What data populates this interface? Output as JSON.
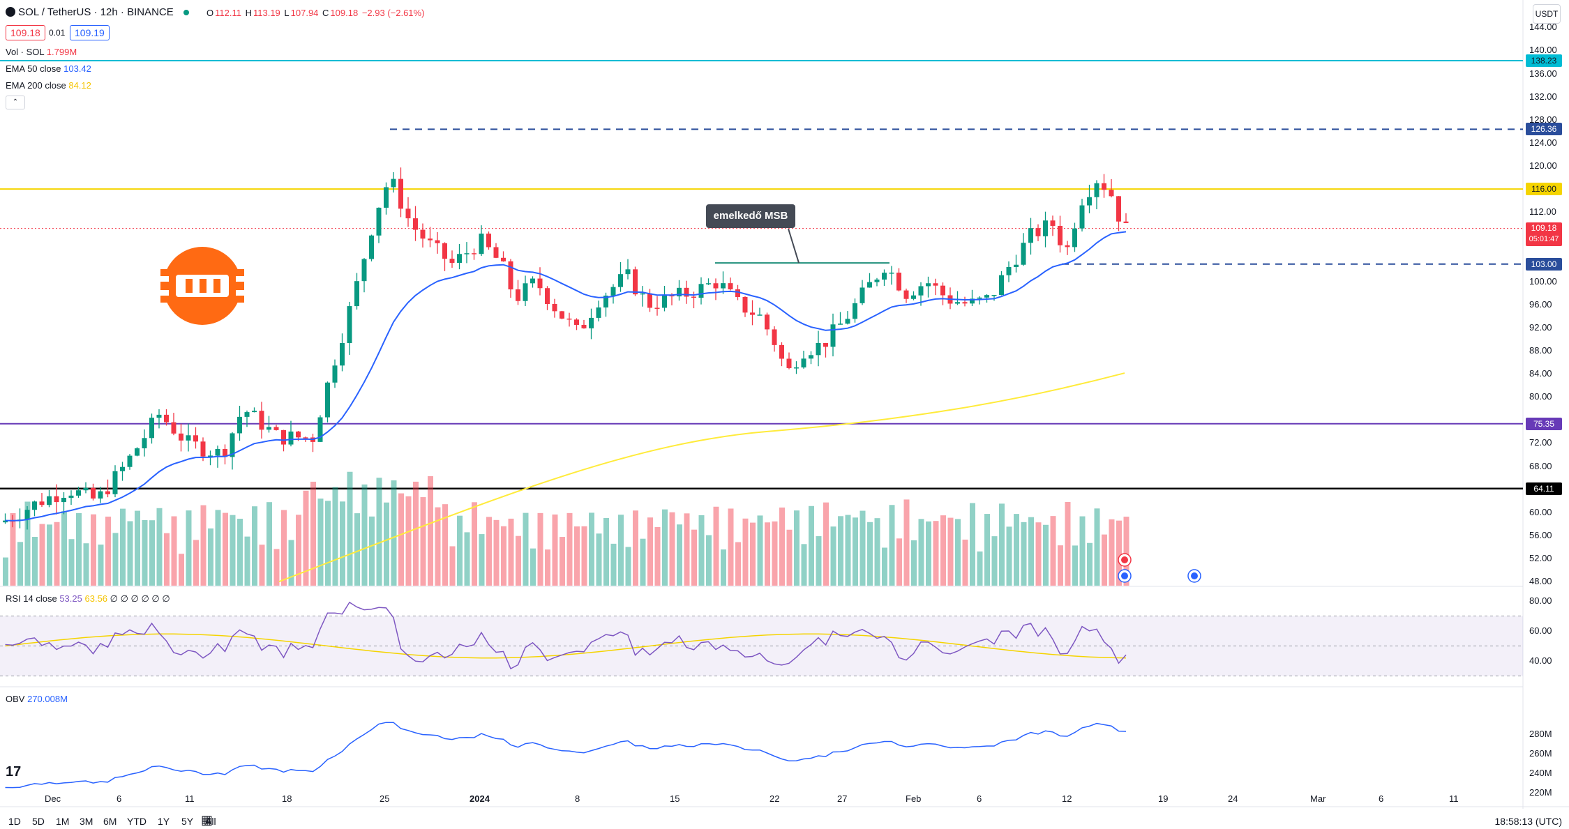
{
  "header": {
    "symbol": "SOL / TetherUS · 12h · BINANCE",
    "open_label": "O",
    "open": "112.11",
    "high_label": "H",
    "high": "113.19",
    "low_label": "L",
    "low": "107.94",
    "close_label": "C",
    "close": "109.18",
    "change": "−2.93 (−2.61%)",
    "bid": "109.18",
    "spread": "0.01",
    "ask": "109.19"
  },
  "indicators": {
    "vol_label": "Vol · SOL",
    "vol_value": "1.799M",
    "ema50_label": "EMA 50 close",
    "ema50_value": "103.42",
    "ema200_label": "EMA 200 close",
    "ema200_value": "84.12",
    "rsi_label": "RSI 14 close",
    "rsi_value": "53.25",
    "rsi_ma": "63.56",
    "rsi_extra": "∅ ∅ ∅ ∅ ∅ ∅",
    "obv_label": "OBV",
    "obv_value": "270.008M"
  },
  "currency": "USDT",
  "price_axis": [
    "144.00",
    "140.00",
    "136.00",
    "132.00",
    "128.00",
    "124.00",
    "120.00",
    "112.00",
    "100.00",
    "96.00",
    "92.00",
    "88.00",
    "84.00",
    "80.00",
    "72.00",
    "68.00",
    "60.00",
    "56.00",
    "52.00",
    "48.00"
  ],
  "price_tags": {
    "t138": "138.23",
    "t126": "126.36",
    "t116": "116.00",
    "t109": "109.18",
    "t_timer": "05:01:47",
    "t103": "103.00",
    "t75": "75.35",
    "t64": "64.11"
  },
  "rsi_axis": [
    "80.00",
    "60.00",
    "40.00"
  ],
  "obv_axis": [
    "280M",
    "260M",
    "240M",
    "220M"
  ],
  "time_axis": [
    "Dec",
    "6",
    "11",
    "18",
    "25",
    "2024",
    "8",
    "15",
    "22",
    "27",
    "Feb",
    "6",
    "12",
    "19",
    "24",
    "Mar",
    "6",
    "11"
  ],
  "timeframes": [
    "1D",
    "5D",
    "1M",
    "3M",
    "6M",
    "YTD",
    "1Y",
    "5Y",
    "All"
  ],
  "clock": "18:58:13 (UTC)",
  "annotation": "emelkedő MSB",
  "colors": {
    "up": "#089981",
    "down": "#f23645",
    "ema50": "#2962ff",
    "ema200": "#ffeb3b",
    "level_yellow": "#f5d400",
    "level_teal": "#00bcd4",
    "level_purple": "#673ab7"
  }
}
